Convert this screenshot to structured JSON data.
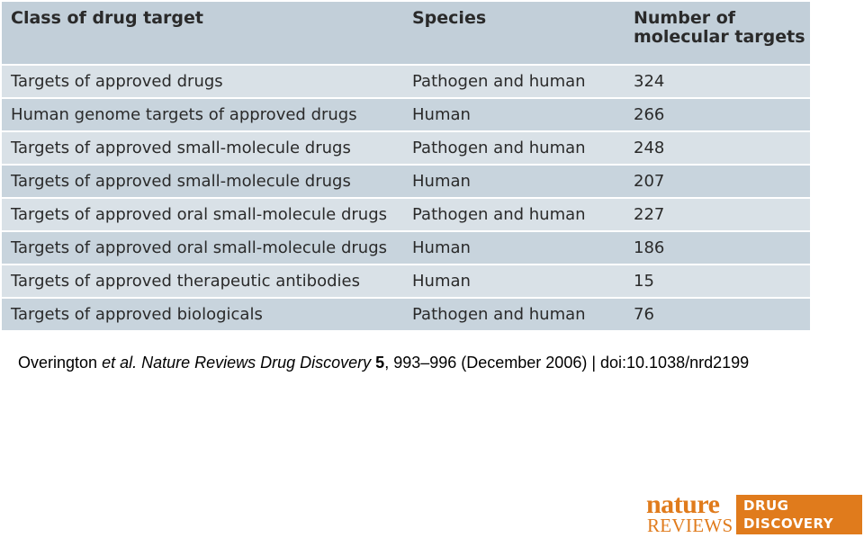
{
  "table": {
    "headers": [
      "Class of drug target",
      "Species",
      "Number of molecular targets"
    ],
    "header_number_line1": "Number of",
    "header_number_line2": "molecular targets",
    "rows": [
      {
        "class": "Targets of approved drugs",
        "species": "Pathogen and human",
        "count": "324"
      },
      {
        "class": "Human genome targets of approved drugs",
        "species": "Human",
        "count": "266"
      },
      {
        "class": "Targets of approved small-molecule drugs",
        "species": "Pathogen and human",
        "count": "248"
      },
      {
        "class": "Targets of approved small-molecule drugs",
        "species": "Human",
        "count": "207"
      },
      {
        "class": "Targets of approved oral small-molecule drugs",
        "species": "Pathogen and human",
        "count": "227"
      },
      {
        "class": "Targets of approved oral small-molecule drugs",
        "species": "Human",
        "count": "186"
      },
      {
        "class": "Targets of approved therapeutic antibodies",
        "species": "Human",
        "count": "15"
      },
      {
        "class": "Targets of approved biologicals",
        "species": "Pathogen and human",
        "count": "76"
      }
    ],
    "header_bg": "#c2cfd9",
    "row_bg_light": "#d9e1e7",
    "row_bg_dark": "#c8d4dd"
  },
  "citation": {
    "author": "Overington ",
    "etal": "et al.",
    "journal": " Nature Reviews Drug Discovery ",
    "volume": "5",
    "rest": ", 993–996 (December 2006) | doi:10.1038/nrd2199"
  },
  "logo": {
    "nature": "nature",
    "reviews": "REVIEWS",
    "line1": "DRUG",
    "line2": "DISCOVERY",
    "color": "#e07b1c"
  }
}
